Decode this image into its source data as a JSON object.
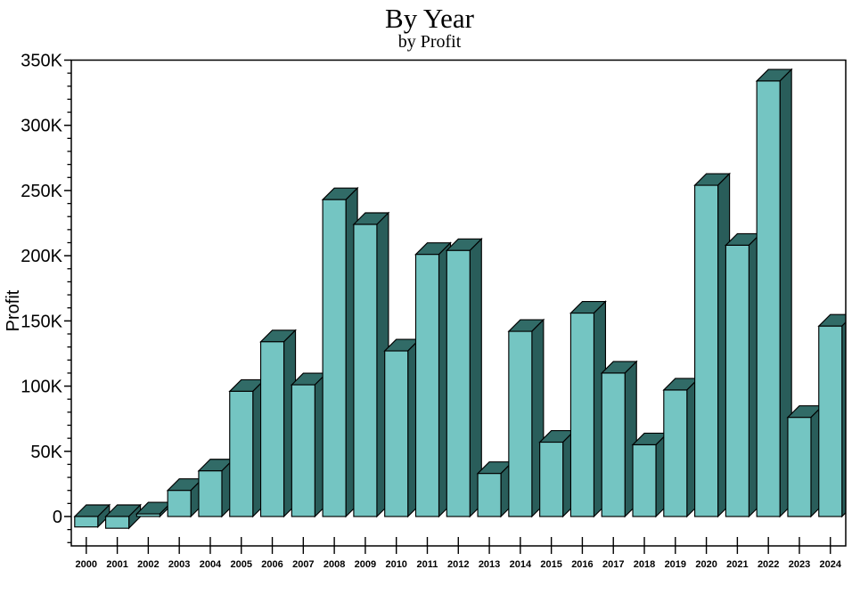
{
  "title": "By Year",
  "subtitle": "by Profit",
  "chart_data": {
    "type": "bar",
    "style": "3d-block",
    "title": "By Year",
    "subtitle": "by Profit",
    "xlabel": "",
    "ylabel": "Profit",
    "categories": [
      "2000",
      "2001",
      "2002",
      "2003",
      "2004",
      "2005",
      "2006",
      "2007",
      "2008",
      "2009",
      "2010",
      "2011",
      "2012",
      "2013",
      "2014",
      "2015",
      "2016",
      "2017",
      "2018",
      "2019",
      "2020",
      "2021",
      "2022",
      "2023",
      "2024"
    ],
    "values": [
      -8000,
      -9000,
      2000,
      20000,
      35000,
      96000,
      134000,
      101000,
      243000,
      224000,
      127000,
      201000,
      204000,
      33000,
      142000,
      57000,
      156000,
      110000,
      55000,
      97000,
      254000,
      208000,
      334000,
      76000,
      146000
    ],
    "ylim": [
      -20000,
      350000
    ],
    "ytick_major_step": 50000,
    "ytick_minor_step": 10000,
    "ytick_labels": [
      "0",
      "50K",
      "100K",
      "150K",
      "200K",
      "250K",
      "300K",
      "350K"
    ],
    "grid": false,
    "legend": null
  },
  "colors": {
    "background": "#ffffff",
    "bar_front": "#74C5C2",
    "bar_top": "#316B67",
    "bar_side": "#295D5A",
    "outline": "#000000",
    "axis": "#000000",
    "text": "#000000"
  }
}
